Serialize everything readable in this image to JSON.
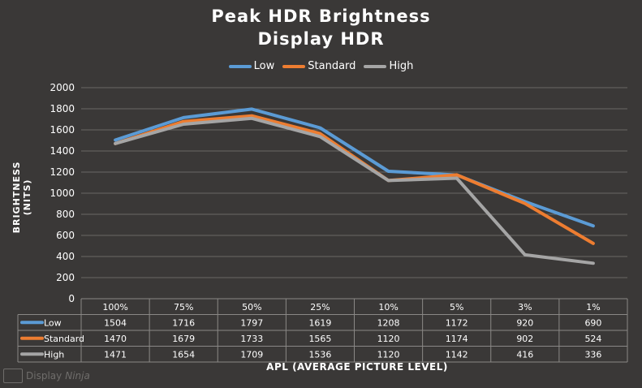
{
  "chart_data": {
    "type": "line",
    "title": "Peak HDR Brightness",
    "subtitle": "Display HDR",
    "xlabel": "APL (AVERAGE PICTURE LEVEL)",
    "ylabel": "BRIGHTNESS (NITS)",
    "ylim": [
      0,
      2000
    ],
    "yticks": [
      "0",
      "200",
      "400",
      "600",
      "800",
      "1000",
      "1200",
      "1400",
      "1600",
      "1800",
      "2000"
    ],
    "grid": true,
    "legend": "top-center",
    "categories": [
      "100%",
      "75%",
      "50%",
      "25%",
      "10%",
      "5%",
      "3%",
      "1%"
    ],
    "series": [
      {
        "name": "Low",
        "color": "#5b9bd5",
        "values": [
          1504,
          1716,
          1797,
          1619,
          1208,
          1172,
          920,
          690
        ]
      },
      {
        "name": "Standard",
        "color": "#ed7d31",
        "values": [
          1470,
          1679,
          1733,
          1565,
          1120,
          1174,
          902,
          524
        ]
      },
      {
        "name": "High",
        "color": "#a5a5a5",
        "values": [
          1471,
          1654,
          1709,
          1536,
          1120,
          1142,
          416,
          336
        ]
      }
    ],
    "data_table": true
  },
  "watermark": {
    "brand": "Display",
    "brand_suffix": "Ninja",
    "icon": "display-ninja-logo-icon"
  }
}
